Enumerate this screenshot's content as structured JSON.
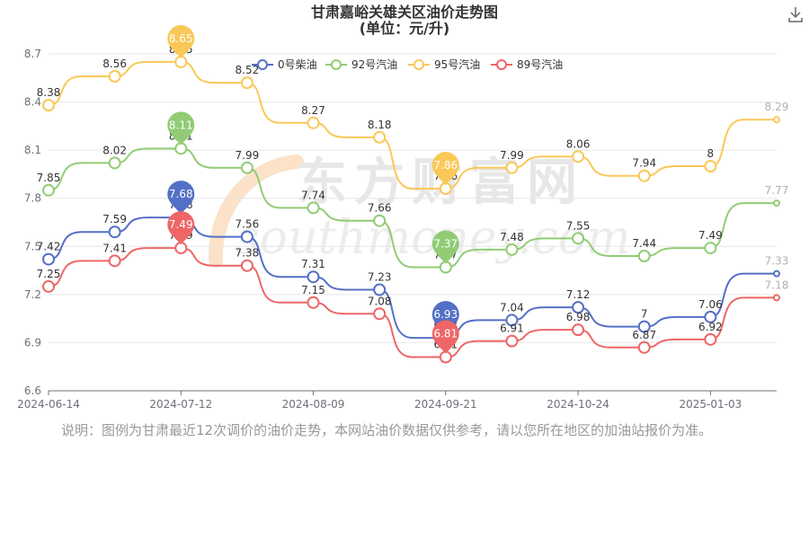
{
  "title": "甘肃嘉峪关雄关区油价走势图",
  "subtitle": "(单位：元/升)",
  "note": "说明：图例为甘肃最近12次调价的油价走势，本网站油价数据仅供参考，请以您所在地区的加油站报价为准。",
  "watermark": {
    "cn": "东方财富网",
    "en": "southmoney.com"
  },
  "icons": {
    "download": "download-icon"
  },
  "chart_data": {
    "type": "line",
    "title": "甘肃嘉峪关雄关区油价走势图",
    "subtitle": "(单位：元/升)",
    "xlabel": "",
    "ylabel": "",
    "ylim": [
      6.6,
      8.7
    ],
    "yticks": [
      "6.6",
      "6.9",
      "7.2",
      "7.5",
      "7.8",
      "8.1",
      "8.4",
      "8.7"
    ],
    "xticks": [
      "2024-06-14",
      "2024-07-12",
      "2024-08-09",
      "2024-09-21",
      "2024-10-24",
      "2025-01-03"
    ],
    "legend_position": "top",
    "grid": true,
    "smooth": "step-like",
    "series": [
      {
        "name": "0号柴油",
        "color": "#5470c6",
        "values": [
          7.42,
          7.59,
          7.68,
          7.56,
          7.31,
          7.23,
          6.93,
          7.04,
          7.12,
          7.0,
          7.06,
          7.33
        ],
        "max_label": "7.68",
        "min_label": "6.93"
      },
      {
        "name": "92号汽油",
        "color": "#91cc75",
        "values": [
          7.85,
          8.02,
          8.11,
          7.99,
          7.74,
          7.66,
          7.37,
          7.48,
          7.55,
          7.44,
          7.49,
          7.77
        ],
        "max_label": "8.11",
        "min_label": "7.37"
      },
      {
        "name": "95号汽油",
        "color": "#fac858",
        "values": [
          8.38,
          8.56,
          8.65,
          8.52,
          8.27,
          8.18,
          7.86,
          7.99,
          8.06,
          7.94,
          8.0,
          8.29
        ],
        "max_label": "8.65",
        "min_label": "7.86"
      },
      {
        "name": "89号汽油",
        "color": "#ee6666",
        "values": [
          7.25,
          7.41,
          7.49,
          7.38,
          7.15,
          7.08,
          6.81,
          6.91,
          6.98,
          6.87,
          6.92,
          7.18
        ],
        "max_label": "7.49",
        "min_label": "6.81"
      }
    ]
  }
}
